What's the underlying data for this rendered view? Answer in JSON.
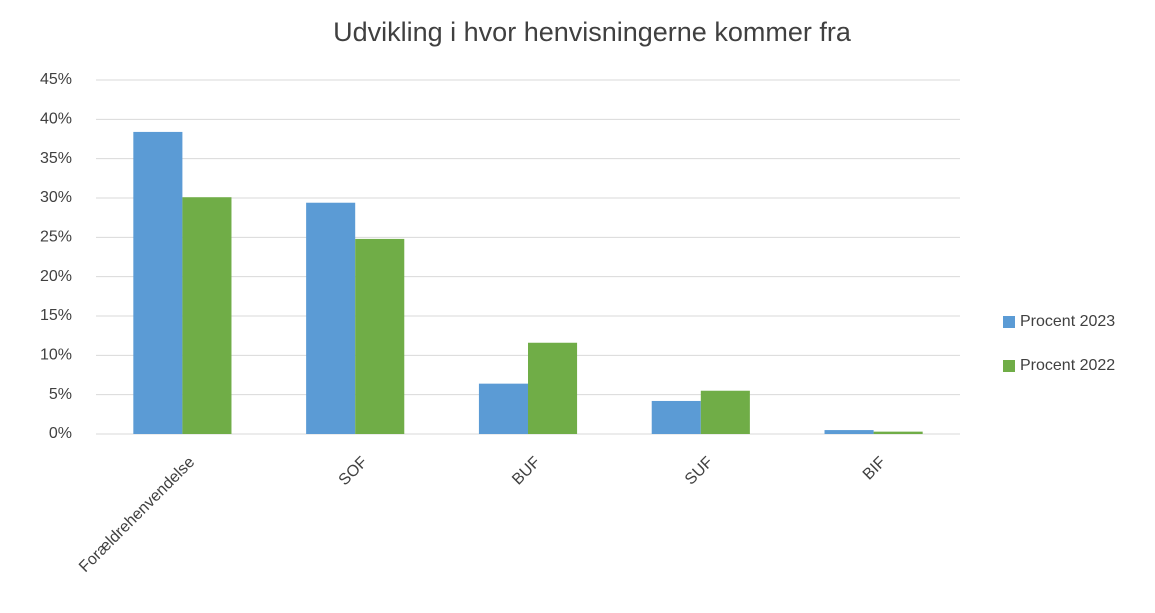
{
  "chart_data": {
    "type": "bar",
    "title": "Udvikling i hvor henvisningerne kommer fra",
    "categories": [
      "Forældrehenvendelse",
      "SOF",
      "BUF",
      "SUF",
      "BIF"
    ],
    "series": [
      {
        "name": "Procent 2023",
        "color": "#5b9bd5",
        "values": [
          38.4,
          29.4,
          6.4,
          4.2,
          0.5
        ]
      },
      {
        "name": "Procent 2022",
        "color": "#70ad47",
        "values": [
          30.1,
          24.8,
          11.6,
          5.5,
          0.3
        ]
      }
    ],
    "ylim": [
      0,
      45
    ],
    "yticks": [
      {
        "value": 0,
        "label": "0%"
      },
      {
        "value": 5,
        "label": "5%"
      },
      {
        "value": 10,
        "label": "10%"
      },
      {
        "value": 15,
        "label": "15%"
      },
      {
        "value": 20,
        "label": "20%"
      },
      {
        "value": 25,
        "label": "25%"
      },
      {
        "value": 30,
        "label": "30%"
      },
      {
        "value": 35,
        "label": "35%"
      },
      {
        "value": 40,
        "label": "40%"
      },
      {
        "value": 45,
        "label": "45%"
      }
    ],
    "grid": true,
    "legend": "right"
  }
}
